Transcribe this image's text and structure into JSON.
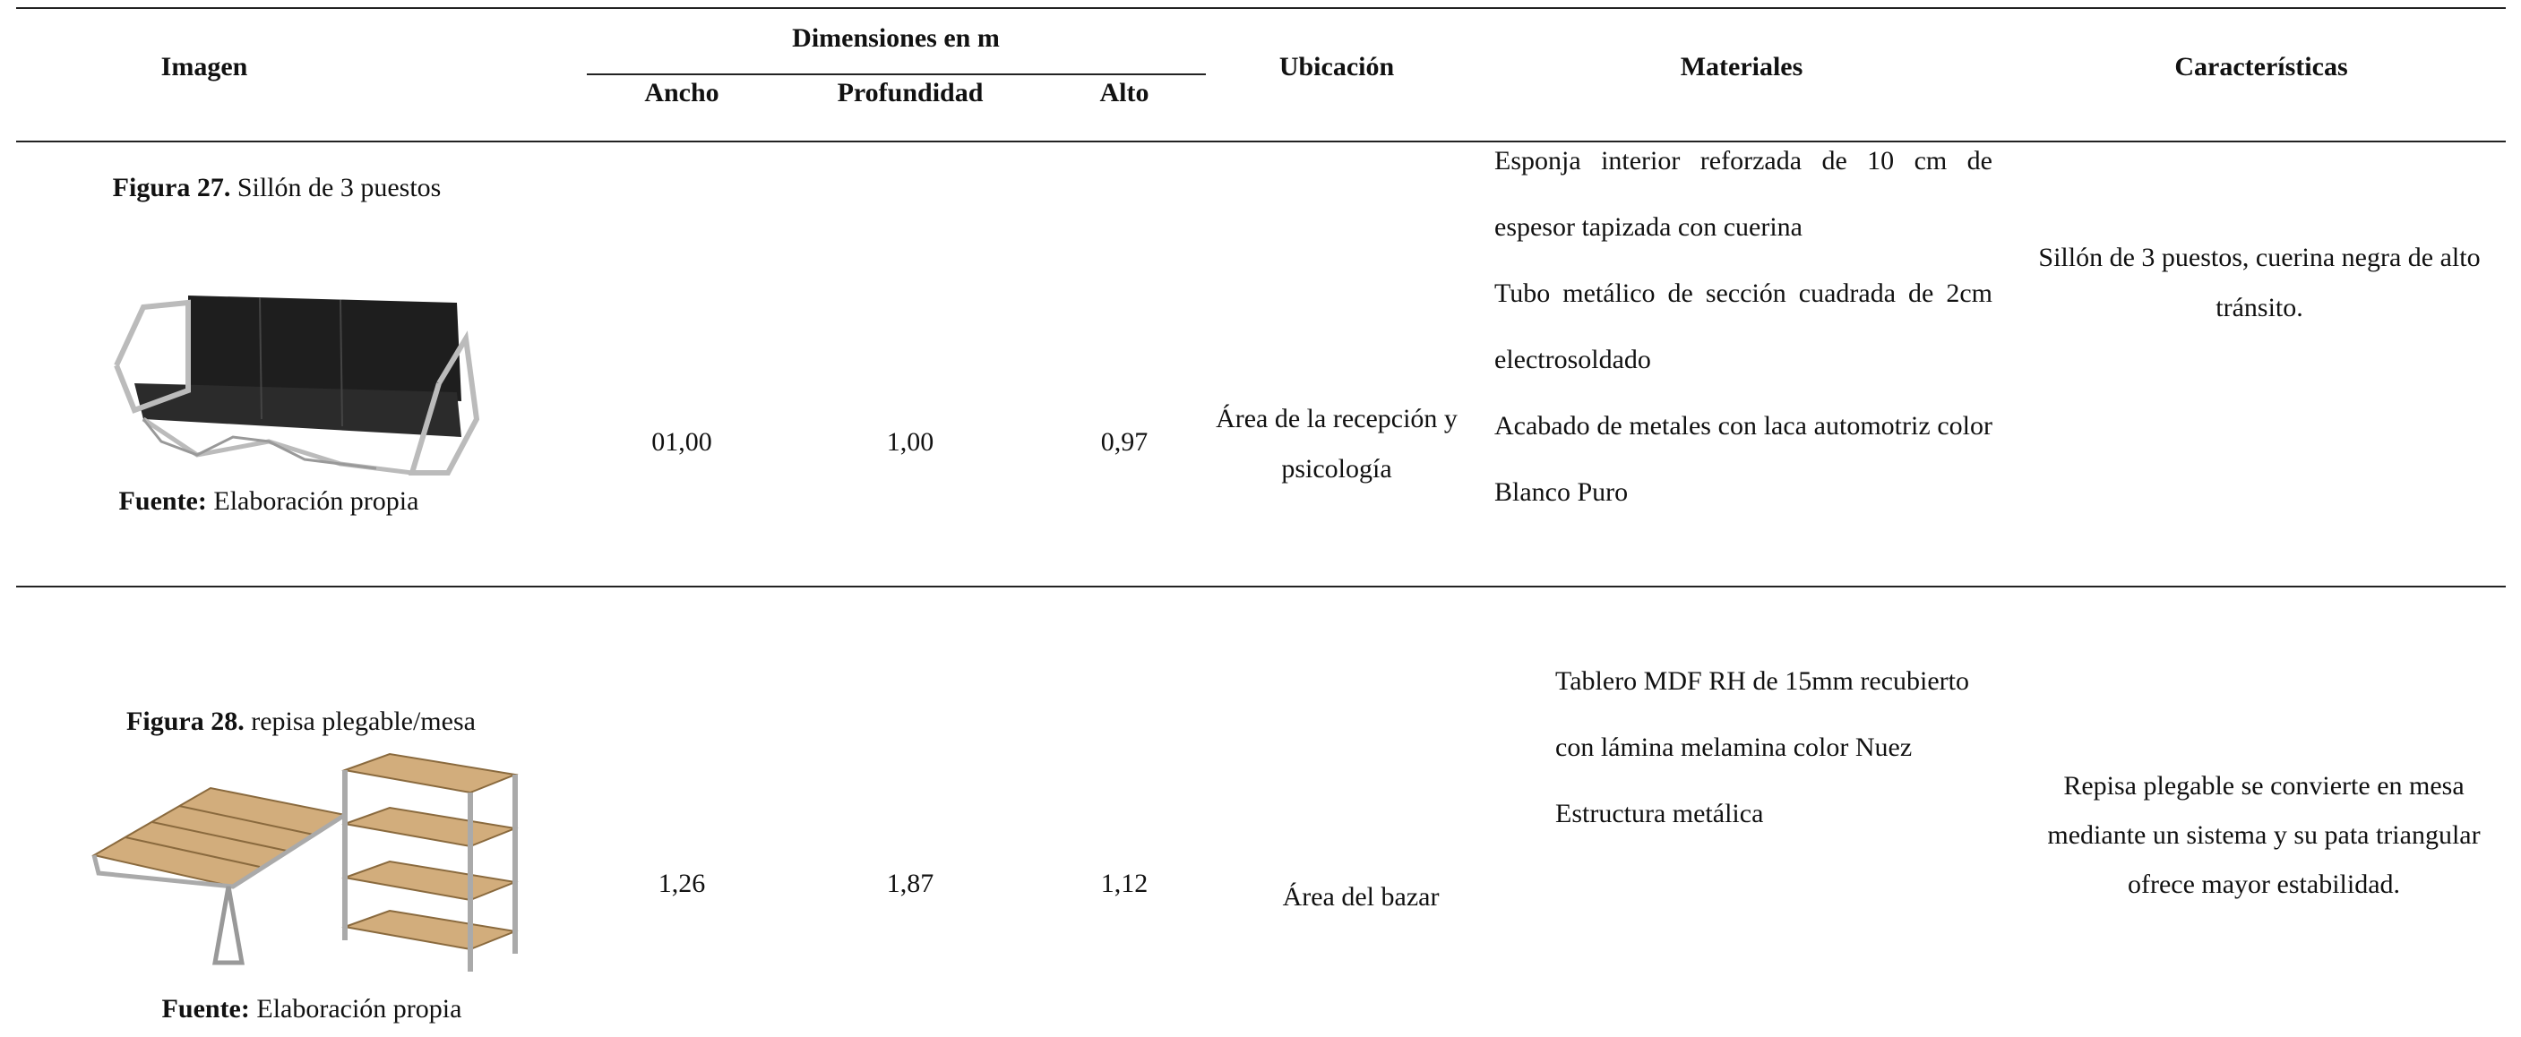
{
  "table": {
    "header": {
      "imagen": "Imagen",
      "dimensiones": "Dimensiones en m",
      "ancho": "Ancho",
      "profundidad": "Profundidad",
      "alto": "Alto",
      "ubicacion": "Ubicación",
      "materiales": "Materiales",
      "caracteristicas": "Características"
    },
    "rows": [
      {
        "figure_label": "Figura 27.",
        "figure_title": "Sillón de 3 puestos",
        "source_label": "Fuente:",
        "source_text": "Elaboración propia",
        "ancho": "01,00",
        "profundidad": "1,00",
        "alto": "0,97",
        "ubicacion": "Área de la recepción y psicología",
        "materiales": [
          "Esponja interior reforzada de 10 cm de espesor tapizada con cuerina",
          "Tubo metálico de sección cuadrada de 2cm electrosoldado",
          "Acabado de metales con laca automotriz color Blanco Puro"
        ],
        "caracteristicas": "Sillón de 3 puestos, cuerina negra de alto tránsito."
      },
      {
        "figure_label": "Figura 28.",
        "figure_title": "repisa plegable/mesa",
        "source_label": "Fuente:",
        "source_text": "Elaboración propia",
        "ancho": "1,26",
        "profundidad": "1,87",
        "alto": "1,12",
        "ubicacion": "Área del bazar",
        "materiales": [
          "Tablero MDF RH de 15mm recubierto con lámina melamina color Nuez",
          "Estructura metálica"
        ],
        "caracteristicas": "Repisa plegable se convierte en mesa mediante un sistema y su pata triangular ofrece mayor estabilidad."
      }
    ]
  }
}
